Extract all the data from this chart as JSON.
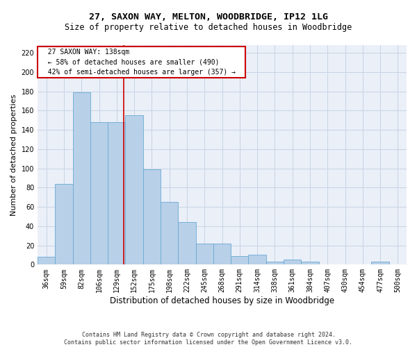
{
  "title": "27, SAXON WAY, MELTON, WOODBRIDGE, IP12 1LG",
  "subtitle": "Size of property relative to detached houses in Woodbridge",
  "xlabel": "Distribution of detached houses by size in Woodbridge",
  "ylabel": "Number of detached properties",
  "categories": [
    "36sqm",
    "59sqm",
    "82sqm",
    "106sqm",
    "129sqm",
    "152sqm",
    "175sqm",
    "198sqm",
    "222sqm",
    "245sqm",
    "268sqm",
    "291sqm",
    "314sqm",
    "338sqm",
    "361sqm",
    "384sqm",
    "407sqm",
    "430sqm",
    "454sqm",
    "477sqm",
    "500sqm"
  ],
  "bar_heights": [
    8,
    84,
    179,
    148,
    148,
    155,
    99,
    65,
    44,
    22,
    22,
    9,
    10,
    3,
    5,
    3,
    0,
    0,
    0,
    3,
    0
  ],
  "bar_color": "#b8d0e8",
  "bar_edge_color": "#6aaad4",
  "bar_width": 1.0,
  "property_label": "27 SAXON WAY: 138sqm",
  "annotation_line1": "← 58% of detached houses are smaller (490)",
  "annotation_line2": "42% of semi-detached houses are larger (357) →",
  "vline_color": "#cc0000",
  "vline_x_index": 4.39,
  "ylim": [
    0,
    228
  ],
  "yticks": [
    0,
    20,
    40,
    60,
    80,
    100,
    120,
    140,
    160,
    180,
    200,
    220
  ],
  "grid_color": "#c8d4e4",
  "bg_color": "#eaeff8",
  "footer": "Contains HM Land Registry data © Crown copyright and database right 2024.\nContains public sector information licensed under the Open Government Licence v3.0.",
  "title_fontsize": 9.5,
  "subtitle_fontsize": 8.5,
  "xlabel_fontsize": 8.5,
  "ylabel_fontsize": 8,
  "tick_fontsize": 7,
  "annotation_fontsize": 7,
  "footer_fontsize": 6
}
